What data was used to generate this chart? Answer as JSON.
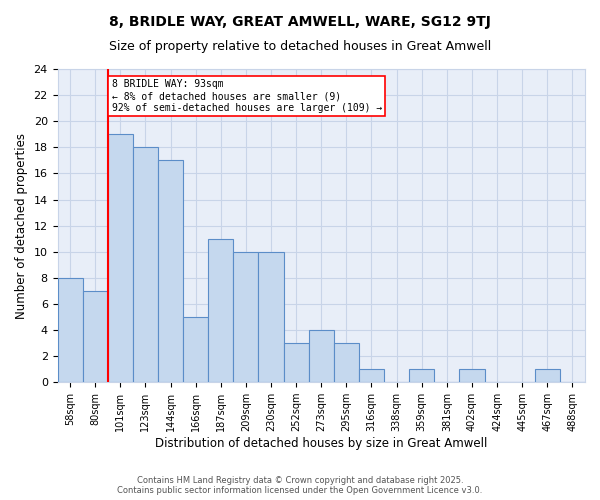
{
  "title1": "8, BRIDLE WAY, GREAT AMWELL, WARE, SG12 9TJ",
  "title2": "Size of property relative to detached houses in Great Amwell",
  "xlabel": "Distribution of detached houses by size in Great Amwell",
  "ylabel": "Number of detached properties",
  "bar_labels": [
    "58sqm",
    "80sqm",
    "101sqm",
    "123sqm",
    "144sqm",
    "166sqm",
    "187sqm",
    "209sqm",
    "230sqm",
    "252sqm",
    "273sqm",
    "295sqm",
    "316sqm",
    "338sqm",
    "359sqm",
    "381sqm",
    "402sqm",
    "424sqm",
    "445sqm",
    "467sqm",
    "488sqm"
  ],
  "bar_values": [
    8,
    7,
    19,
    18,
    17,
    5,
    11,
    10,
    10,
    3,
    4,
    3,
    1,
    0,
    1,
    0,
    1,
    0,
    0,
    1,
    0
  ],
  "bar_color": "#c5d8ee",
  "bar_edge_color": "#5b8dc8",
  "property_line_idx": 2,
  "property_line_label": "8 BRIDLE WAY: 93sqm",
  "annotation_line1": "← 8% of detached houses are smaller (9)",
  "annotation_line2": "92% of semi-detached houses are larger (109) →",
  "ylim": [
    0,
    24
  ],
  "yticks": [
    0,
    2,
    4,
    6,
    8,
    10,
    12,
    14,
    16,
    18,
    20,
    22,
    24
  ],
  "grid_color": "#c8d4e8",
  "bg_color": "#e8eef8",
  "footnote": "Contains HM Land Registry data © Crown copyright and database right 2025.\nContains public sector information licensed under the Open Government Licence v3.0.",
  "title1_fontsize": 10,
  "title2_fontsize": 9
}
